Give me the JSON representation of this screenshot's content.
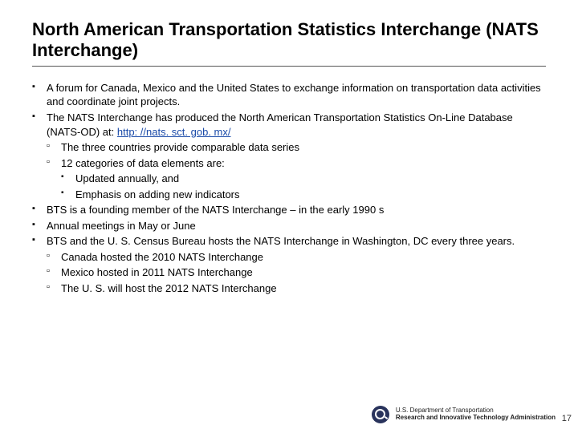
{
  "title": "North American Transportation Statistics Interchange (NATS Interchange)",
  "bullets": {
    "b1": "A forum for Canada, Mexico and the United States to exchange information on transportation data activities and coordinate joint projects.",
    "b2_pre": "The NATS Interchange has produced the North American Transportation Statistics On-Line Database (NATS-OD) at: ",
    "b2_link_text": "http: //nats. sct. gob. mx/",
    "b2_link_href": "http://nats.sct.gob.mx/",
    "b2_sub1": "The three countries provide comparable data series",
    "b2_sub2": "12 categories of data elements are:",
    "b2_sub2_a": "Updated annually, and",
    "b2_sub2_b": "Emphasis on adding new indicators",
    "b3": "BTS is a founding member of the NATS Interchange – in the early 1990 s",
    "b4": "Annual meetings in May or June",
    "b5": "BTS and the U. S. Census Bureau hosts the NATS Interchange in Washington, DC every three years.",
    "b5_sub1": "Canada hosted the 2010 NATS Interchange",
    "b5_sub2": "Mexico hosted in 2011 NATS Interchange",
    "b5_sub3": "The U. S. will host the 2012 NATS Interchange"
  },
  "footer": {
    "line1": "U.S. Department of Transportation",
    "line2": "Research and Innovative Technology Administration"
  },
  "page_number": "17"
}
